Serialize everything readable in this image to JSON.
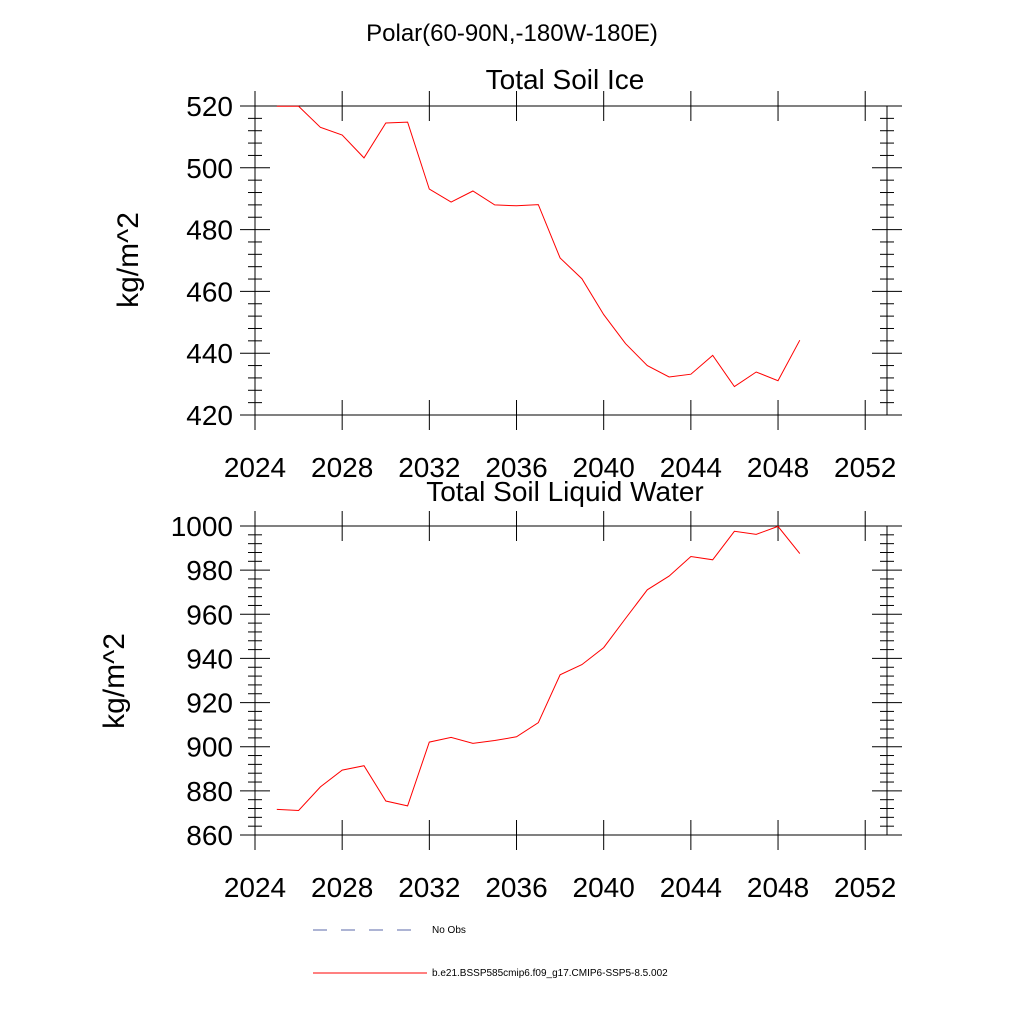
{
  "page_title": "Polar(60-90N,-180W-180E)",
  "colors": {
    "series": "#ff0000",
    "obs": "#5b6aa8",
    "axis": "#000000"
  },
  "legend": {
    "obs_label": "No Obs",
    "model_label": "b.e21.BSSP585cmip6.f09_g17.CMIP6-SSP5-8.5.002"
  },
  "chart_data": [
    {
      "type": "line",
      "title": "Total Soil Ice",
      "xlabel": "",
      "ylabel": "kg/m^2",
      "xlim": [
        2024,
        2053
      ],
      "ylim": [
        420,
        520
      ],
      "xticks": [
        "2024",
        "2028",
        "2032",
        "2036",
        "2040",
        "2044",
        "2048",
        "2052"
      ],
      "yticks": [
        "420",
        "440",
        "460",
        "480",
        "500",
        "520"
      ],
      "x": [
        2025,
        2026,
        2027,
        2028,
        2029,
        2030,
        2031,
        2032,
        2033,
        2034,
        2035,
        2036,
        2037,
        2038,
        2039,
        2040,
        2041,
        2042,
        2043,
        2044,
        2045,
        2046,
        2047,
        2048,
        2049
      ],
      "series": [
        {
          "name": "b.e21.BSSP585cmip6.f09_g17.CMIP6-SSP5-8.5.002",
          "values": [
            519.9,
            519.9,
            513.1,
            510.6,
            503.2,
            514.5,
            514.8,
            493.1,
            488.9,
            492.5,
            488.0,
            487.7,
            488.1,
            470.8,
            464.1,
            452.5,
            443.1,
            436.0,
            432.3,
            433.2,
            439.3,
            429.2,
            433.9,
            431.1,
            444.2
          ]
        }
      ]
    },
    {
      "type": "line",
      "title": "Total Soil Liquid Water",
      "xlabel": "",
      "ylabel": "kg/m^2",
      "xlim": [
        2024,
        2053
      ],
      "ylim": [
        860,
        1000
      ],
      "xticks": [
        "2024",
        "2028",
        "2032",
        "2036",
        "2040",
        "2044",
        "2048",
        "2052"
      ],
      "yticks": [
        "860",
        "880",
        "900",
        "920",
        "940",
        "960",
        "980",
        "1000"
      ],
      "x": [
        2025,
        2026,
        2027,
        2028,
        2029,
        2030,
        2031,
        2032,
        2033,
        2034,
        2035,
        2036,
        2037,
        2038,
        2039,
        2040,
        2041,
        2042,
        2043,
        2044,
        2045,
        2046,
        2047,
        2048,
        2049
      ],
      "series": [
        {
          "name": "b.e21.BSSP585cmip6.f09_g17.CMIP6-SSP5-8.5.002",
          "values": [
            871.6,
            871.1,
            881.8,
            889.4,
            891.4,
            875.4,
            873.2,
            902.1,
            904.2,
            901.5,
            902.8,
            904.5,
            910.9,
            932.6,
            937.2,
            944.9,
            958.1,
            971.1,
            977.3,
            986.2,
            984.7,
            997.6,
            996.2,
            999.8,
            987.5
          ]
        }
      ]
    }
  ]
}
